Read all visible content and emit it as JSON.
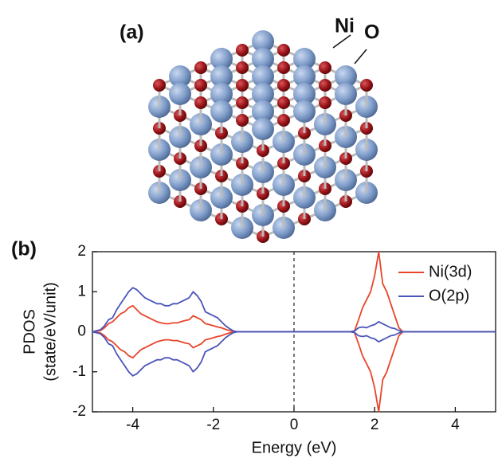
{
  "panel_a": {
    "label": "(a)",
    "atoms": [
      "Ni",
      "O"
    ]
  },
  "chart_data": {
    "type": "line",
    "panel_label": "(b)",
    "xlabel": "Energy (eV)",
    "ylabel": [
      "PDOS",
      "(state/eV/unit)"
    ],
    "xlim": [
      -5,
      5
    ],
    "ylim": [
      -2,
      2
    ],
    "xticks": [
      -4,
      -2,
      0,
      2,
      4
    ],
    "yticks": [
      -2,
      -1,
      0,
      1,
      2
    ],
    "grid": false,
    "legend": "upper right",
    "vline": 0,
    "x": [
      -5,
      -4.8,
      -4.7,
      -4.6,
      -4.5,
      -4.4,
      -4.3,
      -4.2,
      -4.1,
      -4.0,
      -3.9,
      -3.8,
      -3.7,
      -3.6,
      -3.5,
      -3.4,
      -3.3,
      -3.2,
      -3.1,
      -3.0,
      -2.9,
      -2.8,
      -2.7,
      -2.6,
      -2.5,
      -2.4,
      -2.3,
      -2.2,
      -2.1,
      -2.0,
      -1.9,
      -1.8,
      -1.7,
      -1.6,
      -1.5,
      -1.4,
      1.4,
      1.5,
      1.6,
      1.7,
      1.8,
      1.9,
      2.0,
      2.1,
      2.2,
      2.3,
      2.4,
      2.5,
      2.6,
      2.7,
      5
    ],
    "series": [
      {
        "name": "Ni(3d)",
        "color": "#e8452a",
        "values": [
          0,
          0.03,
          0.1,
          0.2,
          0.25,
          0.35,
          0.45,
          0.5,
          0.6,
          0.65,
          0.55,
          0.45,
          0.4,
          0.35,
          0.3,
          0.25,
          0.22,
          0.2,
          0.2,
          0.22,
          0.22,
          0.25,
          0.28,
          0.3,
          0.4,
          0.35,
          0.3,
          0.2,
          0.18,
          0.15,
          0.12,
          0.1,
          0.06,
          0.03,
          0.01,
          0,
          0,
          0.02,
          0.3,
          0.6,
          0.8,
          1.0,
          1.4,
          2.0,
          1.2,
          1.0,
          0.7,
          0.4,
          0.1,
          0,
          0
        ],
        "values_down": [
          0,
          -0.03,
          -0.1,
          -0.2,
          -0.25,
          -0.35,
          -0.45,
          -0.5,
          -0.6,
          -0.65,
          -0.55,
          -0.45,
          -0.4,
          -0.35,
          -0.3,
          -0.25,
          -0.22,
          -0.2,
          -0.2,
          -0.22,
          -0.22,
          -0.25,
          -0.28,
          -0.3,
          -0.4,
          -0.35,
          -0.3,
          -0.2,
          -0.18,
          -0.15,
          -0.12,
          -0.1,
          -0.06,
          -0.03,
          -0.01,
          0,
          0,
          -0.02,
          -0.3,
          -0.6,
          -0.8,
          -1.0,
          -1.4,
          -2.0,
          -1.2,
          -1.0,
          -0.7,
          -0.4,
          -0.1,
          0,
          0
        ]
      },
      {
        "name": "O(2p)",
        "color": "#4a55b8",
        "values": [
          0,
          0.05,
          0.15,
          0.3,
          0.35,
          0.55,
          0.7,
          0.85,
          1.0,
          1.1,
          1.05,
          0.95,
          0.85,
          0.8,
          0.75,
          0.7,
          0.7,
          0.65,
          0.65,
          0.7,
          0.7,
          0.75,
          0.8,
          0.85,
          1.0,
          0.9,
          0.75,
          0.5,
          0.45,
          0.4,
          0.35,
          0.25,
          0.15,
          0.08,
          0.02,
          0,
          0,
          0.02,
          0.1,
          0.12,
          0.1,
          0.15,
          0.18,
          0.25,
          0.2,
          0.15,
          0.1,
          0.08,
          0.03,
          0,
          0
        ],
        "values_down": [
          0,
          -0.05,
          -0.15,
          -0.3,
          -0.35,
          -0.55,
          -0.7,
          -0.85,
          -1.0,
          -1.1,
          -1.05,
          -0.95,
          -0.85,
          -0.8,
          -0.75,
          -0.7,
          -0.7,
          -0.65,
          -0.65,
          -0.7,
          -0.7,
          -0.75,
          -0.8,
          -0.85,
          -1.0,
          -0.9,
          -0.75,
          -0.5,
          -0.45,
          -0.4,
          -0.35,
          -0.25,
          -0.15,
          -0.08,
          -0.02,
          0,
          0,
          -0.02,
          -0.1,
          -0.12,
          -0.1,
          -0.15,
          -0.18,
          -0.25,
          -0.2,
          -0.15,
          -0.1,
          -0.08,
          -0.03,
          0,
          0
        ]
      }
    ]
  }
}
